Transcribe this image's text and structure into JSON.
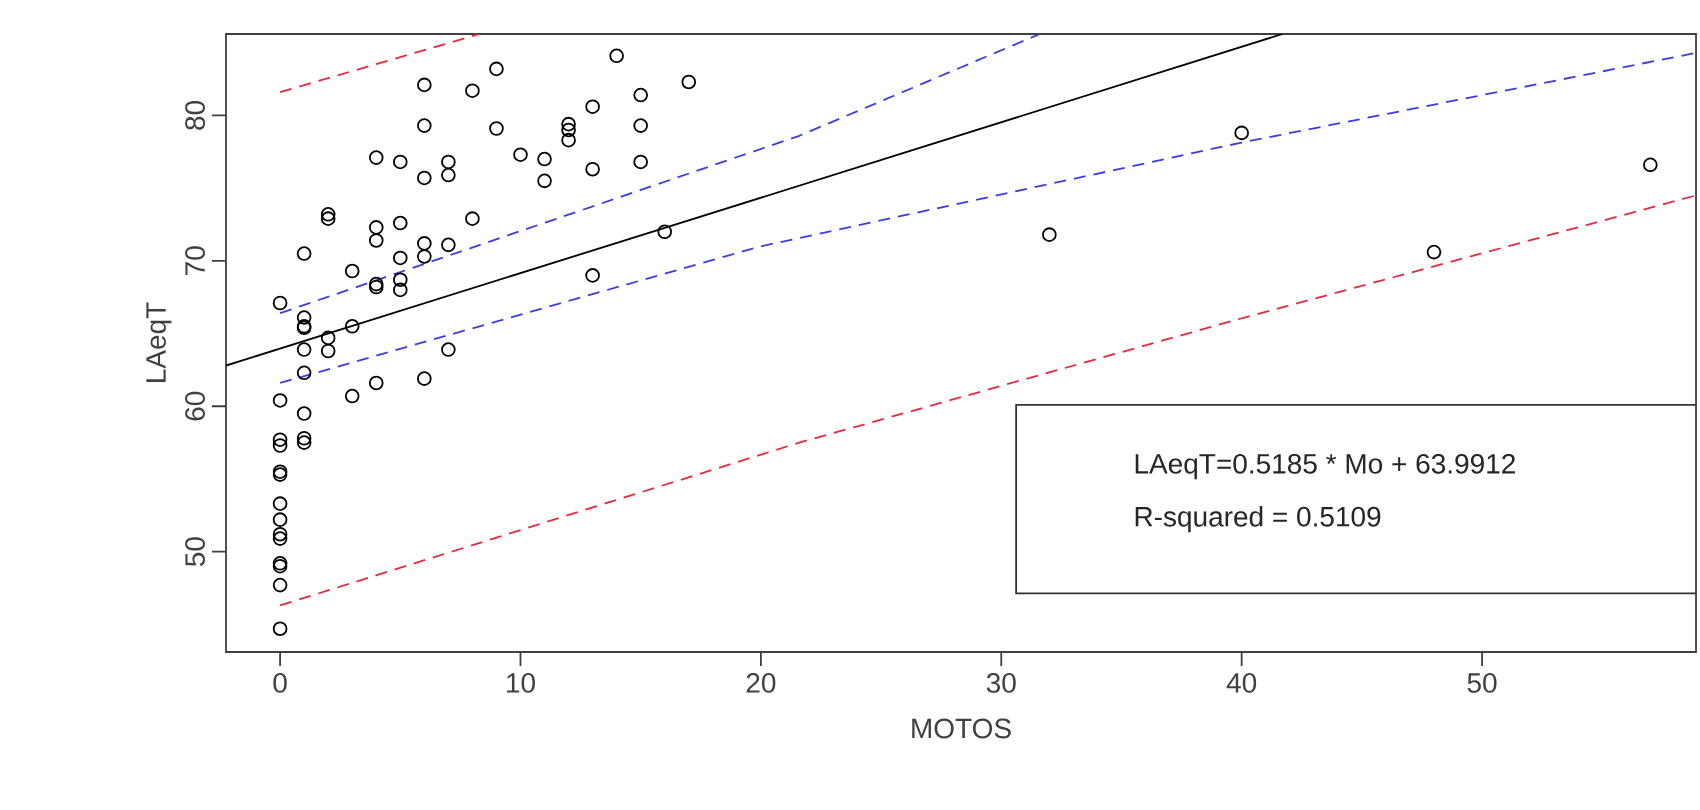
{
  "chart_data": {
    "type": "scatter",
    "xlabel": "MOTOS",
    "ylabel": "LAeqT",
    "xlim": [
      -2.25,
      58.9
    ],
    "ylim": [
      43.1,
      85.6
    ],
    "xticks": [
      0,
      10,
      20,
      30,
      40,
      50
    ],
    "yticks": [
      50,
      60,
      70,
      80
    ],
    "grid": false,
    "annotations": [
      "LAeqT=0.5185 * Mo + 63.9912",
      "R-squared = 0.5109"
    ],
    "series": [
      {
        "marker": "circle",
        "color": "#000000",
        "x": [
          14,
          9,
          17,
          6,
          8,
          15,
          13,
          6,
          9,
          12,
          12,
          12,
          15,
          10,
          11,
          4,
          5,
          7,
          15,
          6,
          7,
          11,
          13,
          2,
          2,
          5,
          4,
          8,
          4,
          6,
          7,
          1,
          5,
          6,
          16,
          3,
          13,
          4,
          4,
          5,
          5,
          0,
          1,
          1,
          1,
          2,
          3,
          1,
          2,
          7,
          1,
          4,
          6,
          0,
          3,
          1,
          0,
          0,
          1,
          1,
          0,
          0,
          0,
          0,
          0,
          0,
          0,
          0,
          0,
          0,
          32,
          40,
          48,
          57
        ],
        "values": [
          84.1,
          83.2,
          82.3,
          82.1,
          81.7,
          81.4,
          80.6,
          79.3,
          79.1,
          79.4,
          79.0,
          78.3,
          79.3,
          77.3,
          77.0,
          77.1,
          76.8,
          76.8,
          76.8,
          75.7,
          75.9,
          75.5,
          76.3,
          73.2,
          72.9,
          72.6,
          72.3,
          72.9,
          71.4,
          71.2,
          71.1,
          70.5,
          70.2,
          70.3,
          72.0,
          69.3,
          69.0,
          68.4,
          68.2,
          68.7,
          68.0,
          67.1,
          66.1,
          65.5,
          65.4,
          64.7,
          65.5,
          63.9,
          63.8,
          63.9,
          62.3,
          61.6,
          61.9,
          60.4,
          60.7,
          59.5,
          57.7,
          57.3,
          57.8,
          57.5,
          55.5,
          55.3,
          53.3,
          52.2,
          51.2,
          50.9,
          49.2,
          49.0,
          47.7,
          44.7,
          71.8,
          78.8,
          70.6,
          76.6
        ]
      },
      {
        "type": "line",
        "marker": "none",
        "color": "#000000",
        "line_style": "solid",
        "x": [
          -2.25,
          41.7
        ],
        "values": [
          62.8,
          85.6
        ]
      },
      {
        "type": "line",
        "marker": "none",
        "color": "#3c3ce6",
        "line_style": "dashed",
        "x": [
          0,
          21.6,
          31.6
        ],
        "values": [
          66.4,
          78.6,
          85.6
        ]
      },
      {
        "type": "line",
        "marker": "none",
        "color": "#3c3ce6",
        "line_style": "dashed",
        "x": [
          0,
          20,
          39.9,
          58.9
        ],
        "values": [
          61.6,
          71.0,
          78.1,
          84.3
        ]
      },
      {
        "type": "line",
        "marker": "none",
        "color": "#e8283c",
        "line_style": "dashed",
        "x": [
          0,
          8.3
        ],
        "values": [
          81.6,
          85.6
        ]
      },
      {
        "type": "line",
        "marker": "none",
        "color": "#e8283c",
        "line_style": "dashed",
        "x": [
          0,
          21.6,
          39.9,
          58.9
        ],
        "values": [
          46.3,
          57.5,
          66.0,
          74.5
        ]
      }
    ]
  }
}
